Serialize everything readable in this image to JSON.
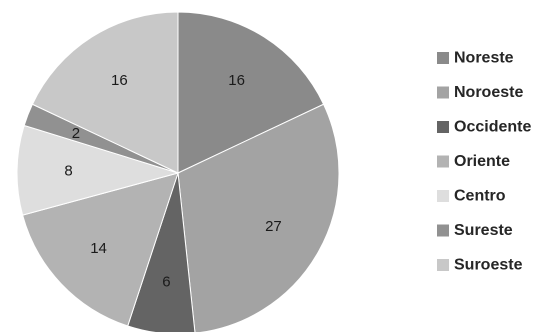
{
  "chart_data": {
    "type": "pie",
    "title": "",
    "categories": [
      "Noreste",
      "Noroeste",
      "Occidente",
      "Oriente",
      "Centro",
      "Sureste",
      "Suroeste"
    ],
    "values": [
      16,
      27,
      6,
      14,
      8,
      2,
      16
    ],
    "colors": [
      "#8a8a8a",
      "#a3a3a3",
      "#646464",
      "#b3b3b3",
      "#dedede",
      "#919191",
      "#c8c8c8"
    ],
    "start_angle_deg": 0,
    "direction": "clockwise",
    "data_labels": [
      "16",
      "27",
      "6",
      "14",
      "8",
      "2",
      "16"
    ],
    "legend": {
      "position": "right",
      "entries": [
        "Noreste",
        "Noroeste",
        "Occidente",
        "Oriente",
        "Centro",
        "Sureste",
        "Suroeste"
      ]
    }
  }
}
